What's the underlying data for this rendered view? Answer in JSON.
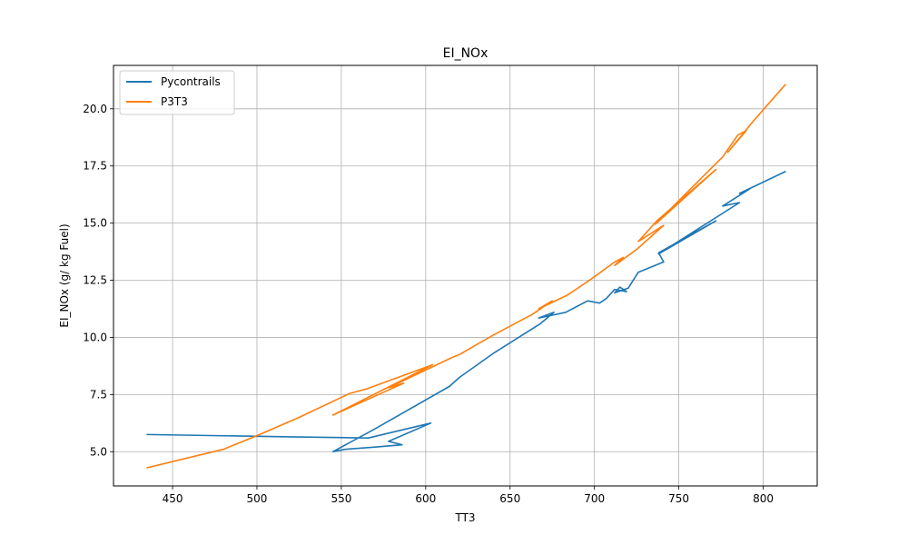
{
  "chart_data": {
    "type": "line",
    "title": "EI_NOx",
    "xlabel": "TT3",
    "ylabel": "EI_NOx (g/ kg Fuel)",
    "xlim": [
      415,
      832
    ],
    "ylim": [
      3.5,
      21.9
    ],
    "xticks": [
      450,
      500,
      550,
      600,
      650,
      700,
      750,
      800
    ],
    "yticks": [
      5.0,
      7.5,
      10.0,
      12.5,
      15.0,
      17.5,
      20.0
    ],
    "xtick_labels": [
      "450",
      "500",
      "550",
      "600",
      "650",
      "700",
      "750",
      "800"
    ],
    "ytick_labels": [
      "5.0",
      "7.5",
      "10.0",
      "12.5",
      "15.0",
      "17.5",
      "20.0"
    ],
    "grid": true,
    "legend_position": "upper-left",
    "series": [
      {
        "name": "Pycontrails",
        "color": "#1f77b4",
        "points": [
          [
            435,
            5.75
          ],
          [
            520,
            5.65
          ],
          [
            566,
            5.6
          ],
          [
            603,
            6.25
          ],
          [
            578,
            5.45
          ],
          [
            586,
            5.3
          ],
          [
            570,
            5.2
          ],
          [
            552,
            5.1
          ],
          [
            545,
            5.0
          ],
          [
            570,
            6.0
          ],
          [
            614,
            7.85
          ],
          [
            620,
            8.25
          ],
          [
            640,
            9.3
          ],
          [
            668,
            10.6
          ],
          [
            676,
            11.1
          ],
          [
            667,
            10.85
          ],
          [
            683,
            11.1
          ],
          [
            696,
            11.6
          ],
          [
            703,
            11.5
          ],
          [
            707,
            11.7
          ],
          [
            712,
            12.1
          ],
          [
            719,
            12.0
          ],
          [
            715,
            12.2
          ],
          [
            712,
            11.95
          ],
          [
            720,
            12.15
          ],
          [
            726,
            12.85
          ],
          [
            741,
            13.3
          ],
          [
            738,
            13.7
          ],
          [
            772,
            15.1
          ],
          [
            738,
            13.65
          ],
          [
            786,
            15.9
          ],
          [
            776,
            15.75
          ],
          [
            792,
            16.5
          ],
          [
            786,
            16.3
          ],
          [
            813,
            17.25
          ]
        ]
      },
      {
        "name": "P3T3",
        "color": "#ff7f0e",
        "points": [
          [
            435,
            4.3
          ],
          [
            480,
            5.1
          ],
          [
            500,
            5.7
          ],
          [
            525,
            6.5
          ],
          [
            555,
            7.55
          ],
          [
            565,
            7.75
          ],
          [
            604,
            8.8
          ],
          [
            545,
            6.6
          ],
          [
            587,
            8.0
          ],
          [
            578,
            7.8
          ],
          [
            615,
            9.1
          ],
          [
            620,
            9.25
          ],
          [
            640,
            10.1
          ],
          [
            663,
            11.0
          ],
          [
            675,
            11.6
          ],
          [
            667,
            11.25
          ],
          [
            684,
            11.85
          ],
          [
            698,
            12.55
          ],
          [
            712,
            13.3
          ],
          [
            717,
            13.5
          ],
          [
            712,
            13.15
          ],
          [
            725,
            13.85
          ],
          [
            741,
            14.9
          ],
          [
            726,
            14.2
          ],
          [
            737,
            15.1
          ],
          [
            772,
            17.35
          ],
          [
            736,
            14.95
          ],
          [
            776,
            17.9
          ],
          [
            785,
            18.85
          ],
          [
            790,
            19.05
          ],
          [
            779,
            18.1
          ],
          [
            794,
            19.45
          ],
          [
            813,
            21.05
          ]
        ]
      }
    ]
  }
}
